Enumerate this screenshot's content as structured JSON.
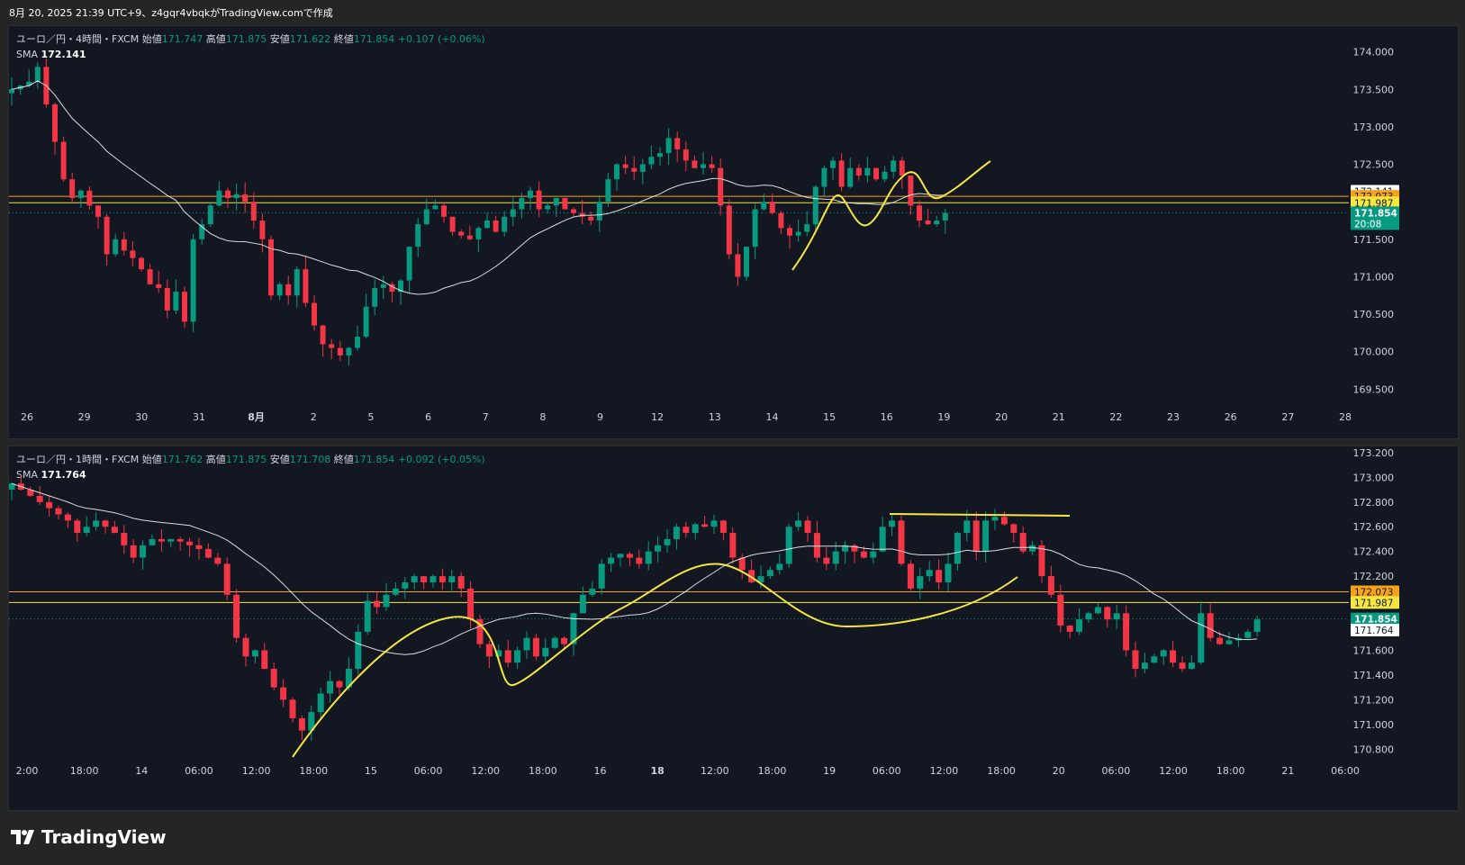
{
  "header": {
    "caption": "8月 20, 2025 21:39 UTC+9、z4gqr4vbqkがTradingView.comで作成"
  },
  "colors": {
    "bull": "#089981",
    "bear": "#f23645",
    "sma": "#ffffff",
    "yellow": "#f5e642",
    "orange": "#f7a21b",
    "bg": "#131722"
  },
  "panels": [
    {
      "legend": {
        "symbol": "ユーロ／円・4時間・FXCM",
        "o_label": "始値",
        "o": "171.747",
        "h_label": "高値",
        "h": "171.875",
        "l_label": "安値",
        "l": "171.622",
        "c_label": "終値",
        "c": "171.854",
        "chg": "+0.107 (+0.06%)",
        "sma_label": "SMA",
        "sma": "172.141"
      },
      "price_tags": [
        {
          "text": "172.141",
          "bg": "#ffffff",
          "fg": "#131722",
          "price": 172.141
        },
        {
          "text": "172.073",
          "bg": "#f7a21b",
          "fg": "#131722",
          "price": 172.073
        },
        {
          "text": "171.987",
          "bg": "#f5e642",
          "fg": "#131722",
          "price": 171.987
        },
        {
          "text": "171.854",
          "text2": "20:08",
          "bg": "#089981",
          "fg": "#ffffff",
          "price": 171.854
        }
      ]
    },
    {
      "legend": {
        "symbol": "ユーロ／円・1時間・FXCM",
        "o_label": "始値",
        "o": "171.762",
        "h_label": "高値",
        "h": "171.875",
        "l_label": "安値",
        "l": "171.708",
        "c_label": "終値",
        "c": "171.854",
        "chg": "+0.092 (+0.05%)",
        "sma_label": "SMA",
        "sma": "171.764"
      },
      "price_tags": [
        {
          "text": "172.073",
          "bg": "#f7a21b",
          "fg": "#131722",
          "price": 172.073
        },
        {
          "text": "171.987",
          "bg": "#f5e642",
          "fg": "#131722",
          "price": 171.987
        },
        {
          "text": "171.854",
          "text2": "20:07",
          "bg": "#089981",
          "fg": "#ffffff",
          "price": 171.854
        },
        {
          "text": "171.764",
          "bg": "#ffffff",
          "fg": "#131722",
          "price": 171.764
        }
      ]
    }
  ],
  "chart_data": [
    {
      "type": "candlestick",
      "title": "ユーロ／円・4時間・FXCM",
      "ylim": [
        169.3,
        174.2
      ],
      "y_ticks": [
        "174.000",
        "173.500",
        "173.000",
        "172.500",
        "172.000",
        "171.500",
        "171.000",
        "170.500",
        "170.000",
        "169.500"
      ],
      "x_ticks": [
        "26",
        "29",
        "30",
        "31",
        "8月",
        "2",
        "5",
        "6",
        "7",
        "8",
        "9",
        "12",
        "13",
        "14",
        "15",
        "16",
        "19",
        "20",
        "21",
        "22",
        "23",
        "26",
        "27",
        "28"
      ],
      "horizontal_lines": [
        {
          "price": 172.073,
          "color": "orange"
        },
        {
          "price": 171.987,
          "color": "yellow"
        }
      ],
      "last_price": 171.854,
      "close_series": [
        173.5,
        173.55,
        173.6,
        173.8,
        173.3,
        172.8,
        172.3,
        172.05,
        172.15,
        171.95,
        171.8,
        171.3,
        171.5,
        171.35,
        171.25,
        171.1,
        170.9,
        170.85,
        170.55,
        170.8,
        170.4,
        171.5,
        171.7,
        171.95,
        172.15,
        172.05,
        172.1,
        172.0,
        171.75,
        171.5,
        170.75,
        170.9,
        170.75,
        171.1,
        170.65,
        170.35,
        170.1,
        170.05,
        169.95,
        170.05,
        170.2,
        170.6,
        170.85,
        170.9,
        170.8,
        170.95,
        171.4,
        171.7,
        171.9,
        171.95,
        171.8,
        171.6,
        171.55,
        171.5,
        171.65,
        171.75,
        171.6,
        171.8,
        171.9,
        172.05,
        172.15,
        171.9,
        171.95,
        172.05,
        171.9,
        171.85,
        171.8,
        171.75,
        172.0,
        172.3,
        172.5,
        172.45,
        172.4,
        172.5,
        172.6,
        172.65,
        172.85,
        172.7,
        172.55,
        172.45,
        172.5,
        172.45,
        171.95,
        171.3,
        171.0,
        171.4,
        171.9,
        172.0,
        171.85,
        171.65,
        171.55,
        171.6,
        171.7,
        172.2,
        172.45,
        172.55,
        172.2,
        172.45,
        172.35,
        172.45,
        172.3,
        172.4,
        172.55,
        172.35,
        171.95,
        171.75,
        171.7,
        171.75,
        171.85
      ]
    },
    {
      "type": "candlestick",
      "title": "ユーロ／円・1時間・FXCM",
      "ylim": [
        170.7,
        173.25
      ],
      "y_ticks": [
        "173.200",
        "173.000",
        "172.800",
        "172.600",
        "172.400",
        "172.200",
        "171.600",
        "171.400",
        "171.200",
        "171.000",
        "170.800"
      ],
      "x_ticks": [
        "2:00",
        "18:00",
        "14",
        "06:00",
        "12:00",
        "18:00",
        "15",
        "06:00",
        "12:00",
        "18:00",
        "16",
        "18",
        "12:00",
        "18:00",
        "19",
        "06:00",
        "12:00",
        "18:00",
        "20",
        "06:00",
        "12:00",
        "18:00",
        "21",
        "06:00"
      ],
      "horizontal_lines": [
        {
          "price": 172.073,
          "color": "orange"
        },
        {
          "price": 171.987,
          "color": "yellow"
        }
      ],
      "last_price": 171.854,
      "close_series": [
        172.95,
        172.9,
        172.85,
        172.8,
        172.75,
        172.7,
        172.65,
        172.55,
        172.6,
        172.65,
        172.6,
        172.55,
        172.45,
        172.35,
        172.45,
        172.5,
        172.48,
        172.5,
        172.48,
        172.45,
        172.42,
        172.35,
        172.3,
        172.05,
        171.7,
        171.55,
        171.6,
        171.45,
        171.3,
        171.2,
        171.05,
        170.95,
        171.1,
        171.25,
        171.35,
        171.3,
        171.45,
        171.75,
        172.0,
        171.95,
        172.05,
        172.1,
        172.15,
        172.2,
        172.15,
        172.2,
        172.15,
        172.2,
        172.1,
        171.85,
        171.65,
        171.55,
        171.6,
        171.5,
        171.6,
        171.7,
        171.55,
        171.62,
        171.7,
        171.65,
        171.9,
        172.05,
        172.1,
        172.3,
        172.35,
        172.38,
        172.35,
        172.3,
        172.4,
        172.45,
        172.5,
        172.6,
        172.55,
        172.62,
        172.6,
        172.65,
        172.55,
        172.35,
        172.25,
        172.15,
        172.2,
        172.25,
        172.3,
        172.6,
        172.65,
        172.55,
        172.35,
        172.3,
        172.4,
        172.45,
        172.4,
        172.35,
        172.4,
        172.6,
        172.65,
        172.3,
        172.1,
        172.2,
        172.25,
        172.15,
        172.3,
        172.55,
        172.65,
        172.4,
        172.65,
        172.68,
        172.62,
        172.55,
        172.4,
        172.45,
        172.2,
        172.05,
        171.8,
        171.75,
        171.85,
        171.9,
        171.95,
        171.85,
        171.9,
        171.6,
        171.45,
        171.5,
        171.55,
        171.6,
        171.5,
        171.45,
        171.5,
        171.9,
        171.7,
        171.65,
        171.68,
        171.7,
        171.75,
        171.85
      ]
    }
  ]
}
